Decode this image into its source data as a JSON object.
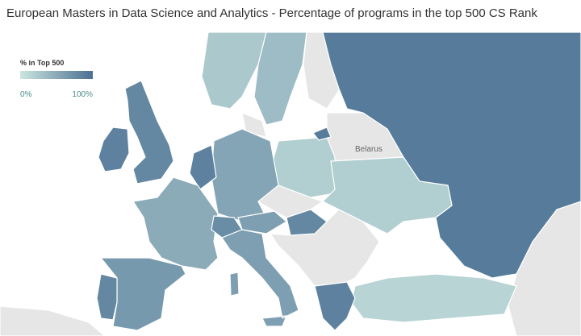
{
  "header": {
    "title": "European Masters in Data Science and Analytics - Percentage of programs in the top 500 CS Rank"
  },
  "legend": {
    "title": "% in Top 500",
    "range": [
      {
        "value": 0,
        "label": "0%"
      },
      {
        "value": 100,
        "label": "100%"
      }
    ],
    "colors": [
      "#cbe6e0",
      "#4a6f92"
    ]
  },
  "map_labels": [
    "Belarus"
  ],
  "regions": [
    {
      "value": 90
    },
    {
      "value": 85
    },
    {
      "value": 80
    },
    {
      "value": 25
    },
    {
      "value": 35
    },
    {
      "value": 20
    },
    {
      "value": 55
    },
    {
      "value": 85
    },
    {
      "value": 50
    },
    {
      "value": 65
    },
    {
      "value": 80
    },
    {
      "value": 75
    },
    {
      "value": 60
    },
    {
      "value": 60
    },
    {
      "value": 80
    },
    {
      "value": 20
    },
    {
      "value": 15
    },
    {
      "value": 85
    },
    {
      "value": 90
    }
  ]
}
